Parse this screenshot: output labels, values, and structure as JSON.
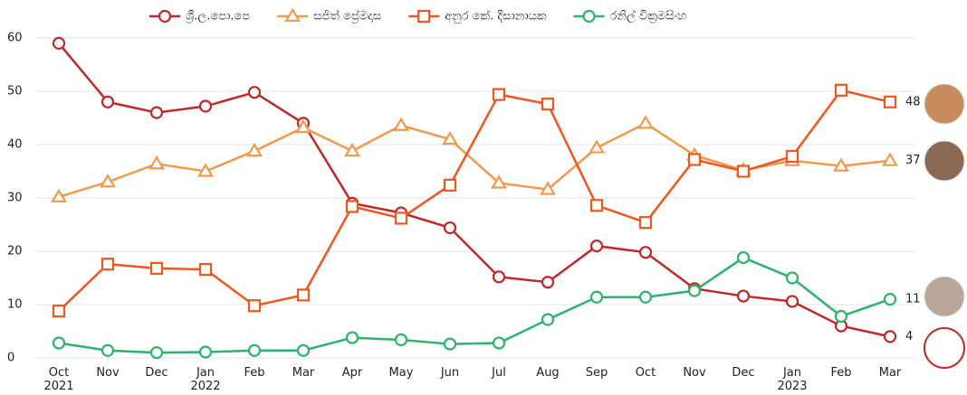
{
  "chart_data": {
    "type": "line",
    "categories": [
      "Oct 2021",
      "Nov",
      "Dec",
      "Jan 2022",
      "Feb",
      "Mar",
      "Apr",
      "May",
      "Jun",
      "Jul",
      "Aug",
      "Sep",
      "Oct",
      "Nov",
      "Dec",
      "Jan 2023",
      "Feb",
      "Mar"
    ],
    "ylim": [
      0,
      60
    ],
    "yticks": [
      0,
      10,
      20,
      30,
      40,
      50,
      60
    ],
    "grid": true,
    "legend": "top",
    "series": [
      {
        "name": "ශ්‍රී.ල.පො.පෙ",
        "color": "#c0282a",
        "marker": "circle",
        "values": [
          59,
          48,
          46,
          47.2,
          49.8,
          44,
          29,
          27.2,
          24.4,
          15.2,
          14.2,
          21,
          19.8,
          13,
          11.6,
          10.6,
          6,
          4
        ]
      },
      {
        "name": "සජිත් ප්‍රේමදාස",
        "color": "#f2994a",
        "marker": "triangle",
        "values": [
          30.2,
          33,
          36.4,
          35,
          38.8,
          43.2,
          38.8,
          43.6,
          41,
          32.8,
          31.6,
          39.4,
          44,
          38,
          35.2,
          37,
          36,
          37
        ]
      },
      {
        "name": "අනුර කේ. දිසානායක",
        "color": "#f0561e",
        "marker": "square",
        "values": [
          8.8,
          17.6,
          16.8,
          16.6,
          9.8,
          11.8,
          28.4,
          26.2,
          32.4,
          49.4,
          47.6,
          28.6,
          25.4,
          37.2,
          35,
          37.8,
          50.2,
          48
        ]
      },
      {
        "name": "රනිල් වික්‍රමසිංහ",
        "color": "#2db36a",
        "marker": "circle",
        "values": [
          2.8,
          1.4,
          1,
          1.1,
          1.4,
          1.4,
          3.8,
          3.4,
          2.6,
          2.8,
          7.2,
          11.4,
          11.4,
          12.6,
          18.8,
          15,
          7.8,
          11
        ]
      }
    ]
  }
}
